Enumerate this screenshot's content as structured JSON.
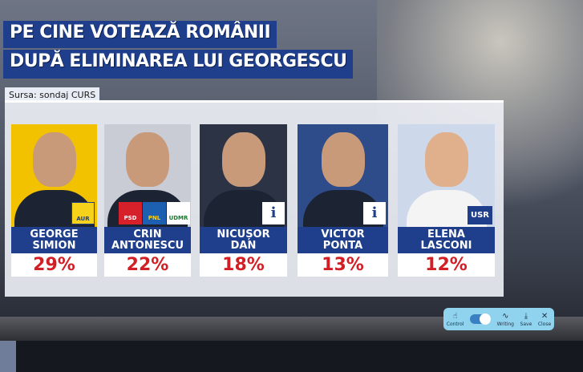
{
  "title": {
    "line1": "PE CINE VOTEAZĂ ROMÂNII",
    "line2": "DUPĂ ELIMINAREA LUI GEORGESCU"
  },
  "source": "Sursa: sondaj CURS",
  "candidates": [
    {
      "first": "GEORGE",
      "last": "SIMION",
      "percent": "29%",
      "value": 29,
      "party": "AUR",
      "bg": "#f2c200"
    },
    {
      "first": "CRIN",
      "last": "ANTONESCU",
      "percent": "22%",
      "value": 22,
      "parties": [
        "PSD",
        "PNL",
        "UDMR"
      ],
      "bg": "#c9ccd4"
    },
    {
      "first": "NICUȘOR",
      "last": "DAN",
      "percent": "18%",
      "value": 18,
      "badge": "i",
      "bg": "#2b3344"
    },
    {
      "first": "VICTOR",
      "last": "PONTA",
      "percent": "13%",
      "value": 13,
      "badge": "i",
      "bg": "#2e4b8a"
    },
    {
      "first": "ELENA",
      "last": "LASCONI",
      "percent": "12%",
      "value": 12,
      "party": "USR",
      "bg": "#cdd8ea"
    }
  ],
  "toolbar": {
    "control": "Control",
    "writing": "Writing",
    "save": "Save",
    "close": "Close"
  },
  "colors": {
    "brand_blue": "#1f3f8c",
    "percent_red": "#d21f26"
  }
}
